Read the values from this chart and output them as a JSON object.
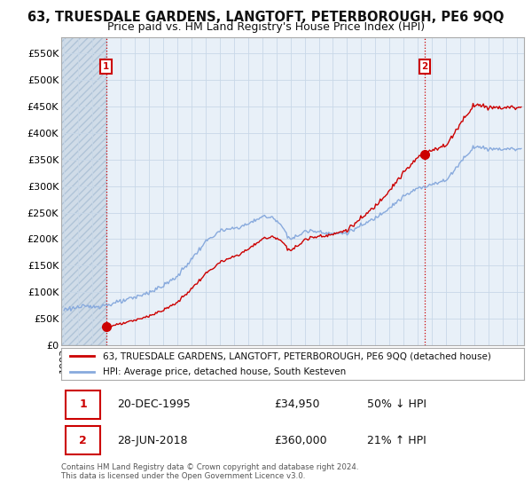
{
  "title": "63, TRUESDALE GARDENS, LANGTOFT, PETERBOROUGH, PE6 9QQ",
  "subtitle": "Price paid vs. HM Land Registry's House Price Index (HPI)",
  "ylabel_ticks": [
    "£0",
    "£50K",
    "£100K",
    "£150K",
    "£200K",
    "£250K",
    "£300K",
    "£350K",
    "£400K",
    "£450K",
    "£500K",
    "£550K"
  ],
  "ytick_values": [
    0,
    50000,
    100000,
    150000,
    200000,
    250000,
    300000,
    350000,
    400000,
    450000,
    500000,
    550000
  ],
  "ylim": [
    0,
    580000
  ],
  "xlim_start": 1992.8,
  "xlim_end": 2025.5,
  "sale1_year": 1995.97,
  "sale1_price": 34950,
  "sale2_year": 2018.49,
  "sale2_price": 360000,
  "legend_line1": "63, TRUESDALE GARDENS, LANGTOFT, PETERBOROUGH, PE6 9QQ (detached house)",
  "legend_line2": "HPI: Average price, detached house, South Kesteven",
  "sale_color": "#cc0000",
  "hpi_color": "#88aadd",
  "grid_color": "#c8d8e8",
  "hatch_color": "#dde8f0",
  "title_fontsize": 10.5,
  "subtitle_fontsize": 9,
  "tick_fontsize": 8
}
